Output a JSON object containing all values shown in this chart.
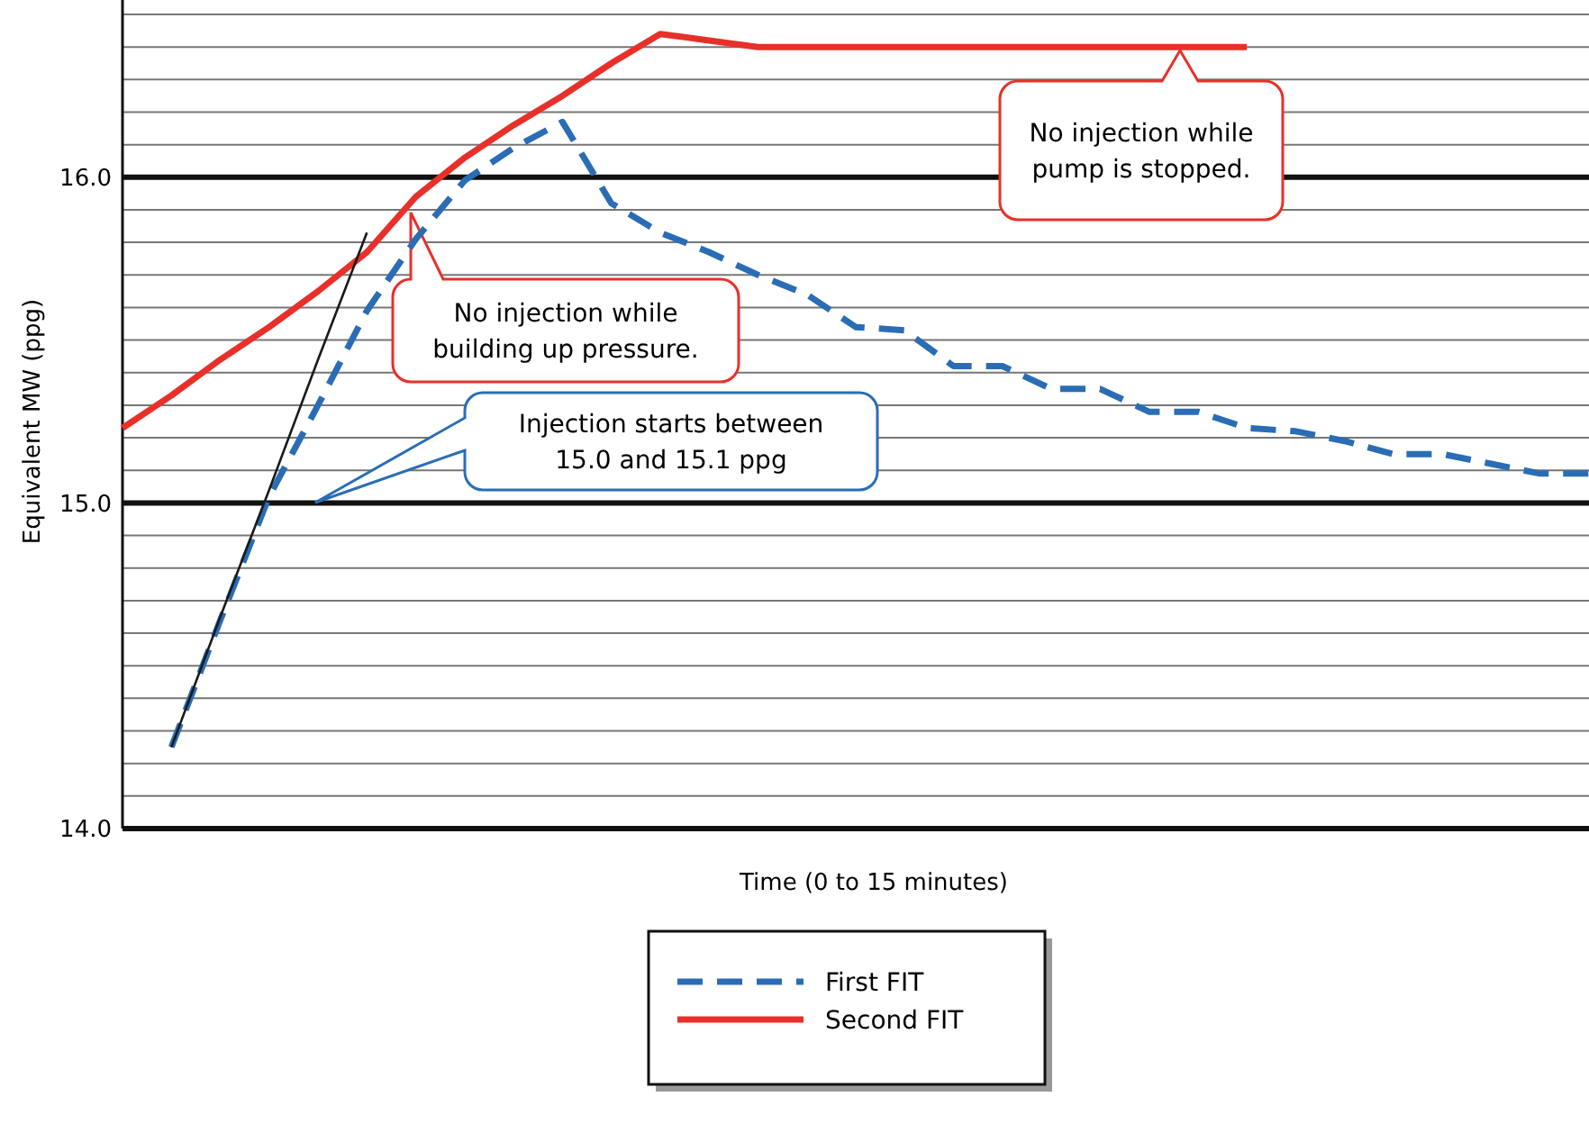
{
  "chart_data": {
    "type": "line",
    "xlabel": "Time (0 to 15 minutes)",
    "ylabel": "Equivalent MW (ppg)",
    "ylim": [
      14,
      16.5
    ],
    "categories": [
      null,
      null,
      null,
      null,
      null,
      null,
      null,
      null,
      null,
      null,
      null,
      null,
      null,
      null,
      null,
      null,
      null,
      null,
      null,
      null,
      null,
      null,
      null,
      null,
      null,
      null,
      null,
      null,
      null,
      null,
      null
    ],
    "yticks": [
      {
        "value": 14,
        "label": "14.0"
      },
      {
        "value": 14.1,
        "label": null
      },
      {
        "value": 14.2,
        "label": null
      },
      {
        "value": 14.3,
        "label": null
      },
      {
        "value": 14.4,
        "label": null
      },
      {
        "value": 14.5,
        "label": null
      },
      {
        "value": 14.6,
        "label": null
      },
      {
        "value": 14.7,
        "label": null
      },
      {
        "value": 14.8,
        "label": null
      },
      {
        "value": 14.9,
        "label": null
      },
      {
        "value": 15,
        "label": "15.0"
      },
      {
        "value": 15.1,
        "label": null
      },
      {
        "value": 15.2,
        "label": null
      },
      {
        "value": 15.3,
        "label": null
      },
      {
        "value": 15.4,
        "label": null
      },
      {
        "value": 15.5,
        "label": null
      },
      {
        "value": 15.6,
        "label": null
      },
      {
        "value": 15.7,
        "label": null
      },
      {
        "value": 15.8,
        "label": null
      },
      {
        "value": 15.9,
        "label": null
      },
      {
        "value": 16,
        "label": "16.0"
      },
      {
        "value": 16.1,
        "label": null
      },
      {
        "value": 16.2,
        "label": null
      },
      {
        "value": 16.3,
        "label": null
      },
      {
        "value": 16.4,
        "label": null
      },
      {
        "value": 16.5,
        "label": null
      }
    ],
    "tick_labels": "y",
    "grid": "y",
    "legend": "bottom",
    "series": [
      {
        "name": "First FIT",
        "color": "#2a6db5",
        "line_style": "dashed",
        "values": [
          null,
          14.25,
          14.64,
          15.02,
          15.3,
          15.59,
          15.81,
          15.99,
          16.09,
          16.17,
          15.92,
          15.83,
          15.77,
          15.7,
          15.64,
          15.54,
          15.53,
          15.42,
          15.42,
          15.35,
          15.35,
          15.28,
          15.28,
          15.23,
          15.22,
          15.19,
          15.15,
          15.15,
          15.12,
          15.09,
          15.09
        ]
      },
      {
        "name": "Second FIT",
        "color": "#e8302a",
        "line_style": "solid",
        "values": [
          15.23,
          15.33,
          15.44,
          15.54,
          15.65,
          15.77,
          15.94,
          16.06,
          16.16,
          16.25,
          16.35,
          16.44,
          16.42,
          16.4,
          16.4,
          16.4,
          16.4,
          16.4,
          16.4,
          16.4,
          16.4,
          16.4,
          16.4,
          16.4,
          null,
          null,
          null,
          null,
          null,
          null,
          null
        ]
      },
      {
        "color": "#1a1a1a",
        "line_style": "solid",
        "values": [
          null,
          14.25,
          14.65,
          15.04,
          15.44,
          15.83,
          null,
          null,
          null,
          null,
          null,
          null,
          null,
          null,
          null,
          null,
          null,
          null,
          null,
          null,
          null,
          null,
          null,
          null,
          null,
          null,
          null,
          null,
          null,
          null,
          null
        ]
      }
    ],
    "annotations": [
      "No injection while pump is stopped.",
      "No injection while building up pressure.",
      "Injection starts between 15.0 and 15.1 ppg"
    ]
  }
}
